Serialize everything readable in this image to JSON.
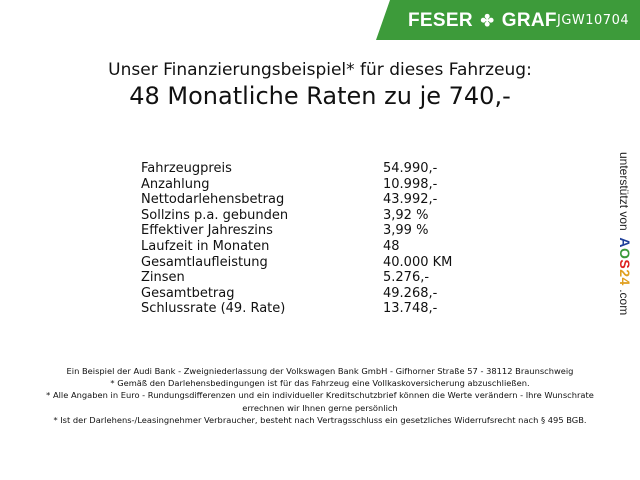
{
  "header": {
    "brand_left": "FESER",
    "brand_right": "GRAF",
    "code": "JGW10704",
    "brand_color": "#3d9b3a"
  },
  "title": {
    "line1": "Unser Finanzierungsbeispiel* für dieses Fahrzeug:",
    "line2": "48 Monatliche Raten zu je 740,-"
  },
  "rows": [
    {
      "label": "Fahrzeugpreis",
      "value": "54.990,-"
    },
    {
      "label": "Anzahlung",
      "value": "10.998,-"
    },
    {
      "label": "Nettodarlehensbetrag",
      "value": "43.992,-"
    },
    {
      "label": "Sollzins p.a. gebunden",
      "value": "3,92 %"
    },
    {
      "label": "Effektiver Jahreszins",
      "value": "3,99 %"
    },
    {
      "label": "Laufzeit in Monaten",
      "value": "48"
    },
    {
      "label": "Gesamtlaufleistung",
      "value": "40.000 KM"
    },
    {
      "label": "Zinsen",
      "value": "5.276,-"
    },
    {
      "label": "Gesamtbetrag",
      "value": "49.268,-"
    },
    {
      "label": "Schlussrate (49. Rate)",
      "value": "13.748,-"
    }
  ],
  "side": {
    "text": "unterstützt von",
    "logo": [
      "A",
      "O",
      "S",
      "2",
      "4"
    ],
    "suffix": ".com",
    "logo_colors": [
      "#1f3f9a",
      "#3a9a3a",
      "#d22",
      "#e0a020",
      "#e0a020"
    ]
  },
  "footer": [
    "Ein Beispiel der Audi Bank - Zweigniederlassung der Volkswagen Bank GmbH - Gifhorner Straße 57 - 38112 Braunschweig",
    "* Gemäß den Darlehensbedingungen ist für das Fahrzeug eine Vollkaskoversicherung abzuschließen.",
    "* Alle Angaben in Euro - Rundungsdifferenzen und ein individueller Kreditschutzbrief können die Werte verändern - Ihre Wunschrate errechnen wir Ihnen gerne persönlich",
    "* Ist der Darlehens-/Leasingnehmer Verbraucher, besteht nach Vertragsschluss ein gesetzliches Widerrufsrecht nach § 495 BGB."
  ]
}
